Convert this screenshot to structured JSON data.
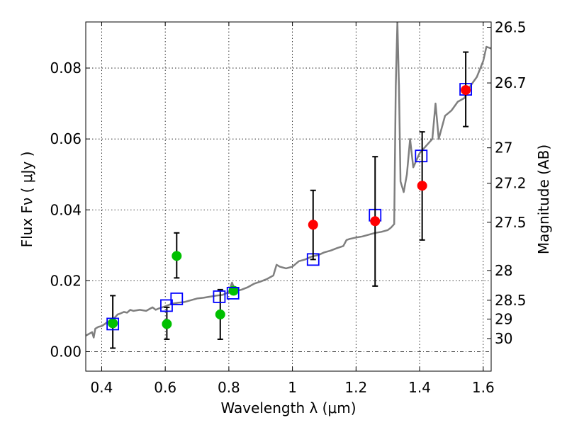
{
  "chart_data": {
    "type": "scatter",
    "xlabel": "Wavelength  λ (μm)",
    "ylabel": "Flux  Fν  ( μJy )",
    "ylabel_right": "Magnitude (AB)",
    "xlim": [
      0.35,
      1.625
    ],
    "ylim": [
      -0.0055,
      0.093
    ],
    "grid": true,
    "x_ticks": [
      {
        "value": 0.4,
        "label": "0.4"
      },
      {
        "value": 0.6,
        "label": "0.6"
      },
      {
        "value": 0.8,
        "label": "0.8"
      },
      {
        "value": 1.0,
        "label": "1"
      },
      {
        "value": 1.2,
        "label": "1.2"
      },
      {
        "value": 1.4,
        "label": "1.4"
      },
      {
        "value": 1.6,
        "label": "1.6"
      }
    ],
    "y_ticks": [
      {
        "value": 0.0,
        "label": "0.00"
      },
      {
        "value": 0.02,
        "label": "0.02"
      },
      {
        "value": 0.04,
        "label": "0.04"
      },
      {
        "value": 0.06,
        "label": "0.06"
      },
      {
        "value": 0.08,
        "label": "0.08"
      }
    ],
    "mag_ticks": [
      {
        "flux": 0.0915,
        "label": "26.5"
      },
      {
        "flux": 0.0758,
        "label": "26.7"
      },
      {
        "flux": 0.0575,
        "label": "27"
      },
      {
        "flux": 0.0475,
        "label": "27.2"
      },
      {
        "flux": 0.0365,
        "label": "27.5"
      },
      {
        "flux": 0.0229,
        "label": "28"
      },
      {
        "flux": 0.0145,
        "label": "28.5"
      },
      {
        "flux": 0.0092,
        "label": "29"
      },
      {
        "flux": 0.0037,
        "label": "30"
      }
    ],
    "colors": {
      "spectrum": "#7f7f7f",
      "model": "#0000ff",
      "detection": "#ff0000",
      "optical": "#00c000",
      "errorbar": "#000000"
    },
    "series": [
      {
        "kind": "spectrum",
        "points": [
          [
            0.35,
            0.0045
          ],
          [
            0.36,
            0.005
          ],
          [
            0.37,
            0.0055
          ],
          [
            0.375,
            0.004
          ],
          [
            0.38,
            0.0065
          ],
          [
            0.39,
            0.007
          ],
          [
            0.4,
            0.0072
          ],
          [
            0.41,
            0.0078
          ],
          [
            0.42,
            0.0085
          ],
          [
            0.43,
            0.0088
          ],
          [
            0.44,
            0.0095
          ],
          [
            0.45,
            0.0105
          ],
          [
            0.46,
            0.0108
          ],
          [
            0.47,
            0.0112
          ],
          [
            0.48,
            0.011
          ],
          [
            0.49,
            0.0118
          ],
          [
            0.5,
            0.0115
          ],
          [
            0.52,
            0.0118
          ],
          [
            0.54,
            0.0115
          ],
          [
            0.56,
            0.0125
          ],
          [
            0.57,
            0.0118
          ],
          [
            0.58,
            0.0122
          ],
          [
            0.6,
            0.0128
          ],
          [
            0.62,
            0.0135
          ],
          [
            0.64,
            0.0138
          ],
          [
            0.66,
            0.014
          ],
          [
            0.68,
            0.0145
          ],
          [
            0.7,
            0.015
          ],
          [
            0.72,
            0.0152
          ],
          [
            0.74,
            0.0155
          ],
          [
            0.76,
            0.0158
          ],
          [
            0.78,
            0.016
          ],
          [
            0.8,
            0.0168
          ],
          [
            0.81,
            0.0195
          ],
          [
            0.82,
            0.017
          ],
          [
            0.84,
            0.0175
          ],
          [
            0.86,
            0.0182
          ],
          [
            0.88,
            0.0192
          ],
          [
            0.9,
            0.0198
          ],
          [
            0.92,
            0.0205
          ],
          [
            0.94,
            0.0215
          ],
          [
            0.95,
            0.0245
          ],
          [
            0.96,
            0.024
          ],
          [
            0.98,
            0.0235
          ],
          [
            1.0,
            0.024
          ],
          [
            1.02,
            0.0255
          ],
          [
            1.04,
            0.026
          ],
          [
            1.06,
            0.0268
          ],
          [
            1.08,
            0.0272
          ],
          [
            1.1,
            0.028
          ],
          [
            1.12,
            0.0285
          ],
          [
            1.14,
            0.0292
          ],
          [
            1.16,
            0.0298
          ],
          [
            1.17,
            0.0315
          ],
          [
            1.18,
            0.0318
          ],
          [
            1.2,
            0.0322
          ],
          [
            1.22,
            0.0325
          ],
          [
            1.24,
            0.033
          ],
          [
            1.26,
            0.0335
          ],
          [
            1.28,
            0.0338
          ],
          [
            1.3,
            0.0343
          ],
          [
            1.31,
            0.035
          ],
          [
            1.32,
            0.036
          ],
          [
            1.325,
            0.075
          ],
          [
            1.33,
            0.093
          ],
          [
            1.335,
            0.075
          ],
          [
            1.34,
            0.048
          ],
          [
            1.35,
            0.045
          ],
          [
            1.36,
            0.05
          ],
          [
            1.37,
            0.06
          ],
          [
            1.38,
            0.052
          ],
          [
            1.39,
            0.054
          ],
          [
            1.4,
            0.056
          ],
          [
            1.42,
            0.058
          ],
          [
            1.44,
            0.06
          ],
          [
            1.45,
            0.07
          ],
          [
            1.46,
            0.06
          ],
          [
            1.48,
            0.0665
          ],
          [
            1.5,
            0.068
          ],
          [
            1.52,
            0.0705
          ],
          [
            1.54,
            0.0715
          ],
          [
            1.55,
            0.073
          ],
          [
            1.56,
            0.075
          ],
          [
            1.58,
            0.0775
          ],
          [
            1.6,
            0.082
          ],
          [
            1.61,
            0.086
          ],
          [
            1.625,
            0.0855
          ]
        ]
      },
      {
        "kind": "model",
        "marker": "square",
        "points": [
          [
            0.435,
            0.0078
          ],
          [
            0.604,
            0.013
          ],
          [
            0.636,
            0.0149
          ],
          [
            0.77,
            0.0155
          ],
          [
            0.813,
            0.0165
          ],
          [
            1.065,
            0.026
          ],
          [
            1.26,
            0.0385
          ],
          [
            1.405,
            0.0552
          ],
          [
            1.545,
            0.074
          ]
        ]
      },
      {
        "kind": "optical",
        "marker": "circle",
        "points": [
          {
            "x": 0.435,
            "y": 0.008,
            "err": [
              0.001,
              0.0158
            ]
          },
          {
            "x": 0.605,
            "y": 0.0078,
            "err": [
              0.0035,
              0.0125
            ]
          },
          {
            "x": 0.636,
            "y": 0.027,
            "err": [
              0.0208,
              0.0335
            ]
          },
          {
            "x": 0.773,
            "y": 0.0105,
            "err": [
              0.0035,
              0.0175
            ]
          },
          {
            "x": 0.815,
            "y": 0.0172,
            "err": null
          }
        ]
      },
      {
        "kind": "detection",
        "marker": "circle",
        "points": [
          {
            "x": 1.065,
            "y": 0.0358,
            "err": [
              0.026,
              0.0455
            ]
          },
          {
            "x": 1.26,
            "y": 0.0368,
            "err": [
              0.0185,
              0.055
            ]
          },
          {
            "x": 1.408,
            "y": 0.0468,
            "err": [
              0.0315,
              0.062
            ]
          },
          {
            "x": 1.545,
            "y": 0.0738,
            "err": [
              0.0635,
              0.0845
            ]
          }
        ]
      }
    ]
  }
}
